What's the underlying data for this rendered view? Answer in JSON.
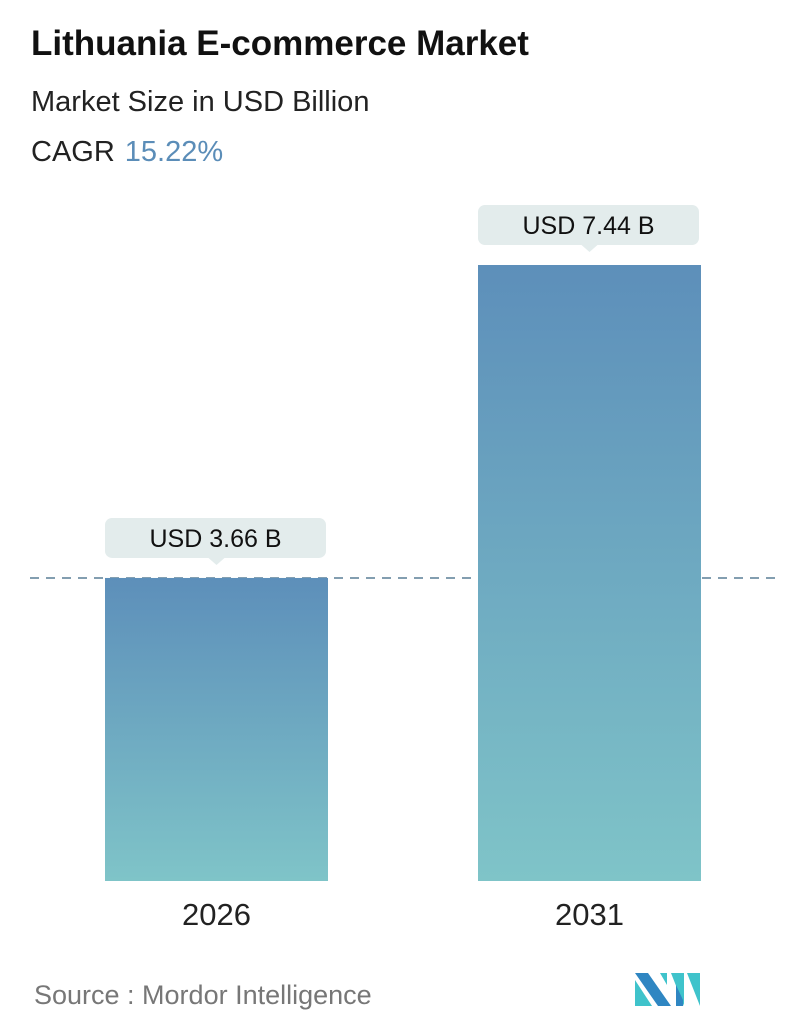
{
  "title": "Lithuania E-commerce Market",
  "subtitle": "Market Size in USD Billion",
  "cagr_label": "CAGR",
  "cagr_value": "15.22%",
  "source": "Source :  Mordor Intelligence",
  "colors": {
    "bar_top": "#5d8fba",
    "bar_bottom": "#7fc4c8",
    "label_bg": "#e3ecec",
    "cagr": "#5b8db8",
    "dash": "#5a7f96"
  },
  "chart_data": {
    "type": "bar",
    "categories": [
      "2026",
      "2031"
    ],
    "values": [
      3.66,
      7.44
    ],
    "data_labels": [
      "USD 3.66 B",
      "USD 7.44 B"
    ],
    "ylim": [
      0,
      7.44
    ],
    "reference_line": 3.66,
    "grid": false
  }
}
